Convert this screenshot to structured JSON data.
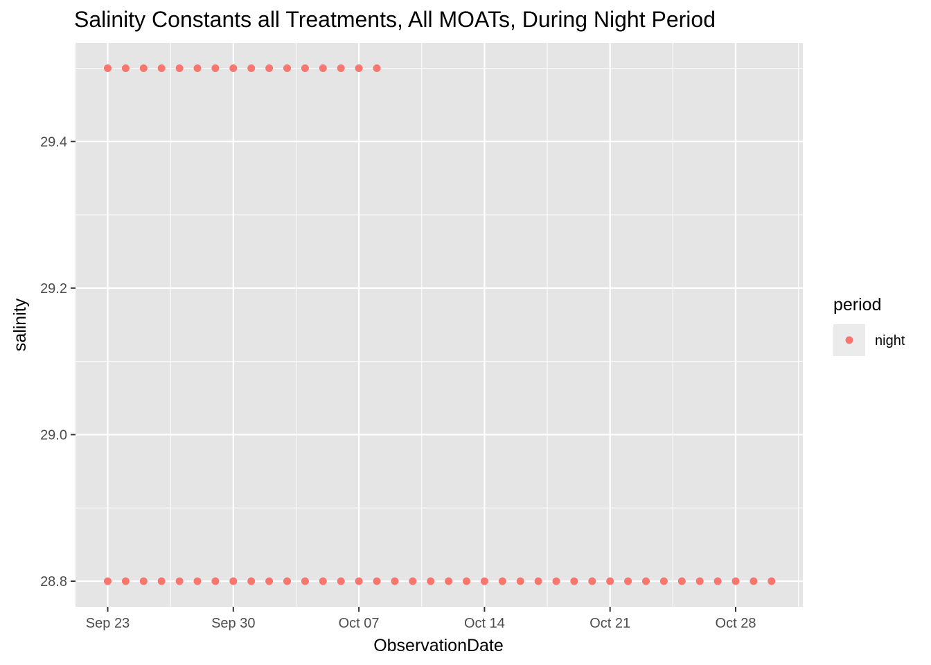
{
  "chart_data": {
    "type": "scatter",
    "title": "Salinity Constants all Treatments, All MOATs, During Night Period",
    "xlabel": "ObservationDate",
    "ylabel": "salinity",
    "x_axis": {
      "type": "date",
      "range": [
        "2020-09-23",
        "2020-10-30"
      ],
      "ticks": [
        {
          "value": "2020-09-23",
          "label": "Sep 23"
        },
        {
          "value": "2020-09-30",
          "label": "Sep 30"
        },
        {
          "value": "2020-10-07",
          "label": "Oct 07"
        },
        {
          "value": "2020-10-14",
          "label": "Oct 14"
        },
        {
          "value": "2020-10-21",
          "label": "Oct 21"
        },
        {
          "value": "2020-10-28",
          "label": "Oct 28"
        }
      ]
    },
    "y_axis": {
      "range": [
        28.8,
        29.5
      ],
      "ticks": [
        {
          "value": 28.8,
          "label": "28.8"
        },
        {
          "value": 29.0,
          "label": "29.0"
        },
        {
          "value": 29.2,
          "label": "29.2"
        },
        {
          "value": 29.4,
          "label": "29.4"
        }
      ]
    },
    "grid": true,
    "legend": {
      "title": "period",
      "placement": "right",
      "entries": [
        {
          "label": "night",
          "color": "#F8766D"
        }
      ]
    },
    "series": [
      {
        "name": "night",
        "color": "#F8766D",
        "points": [
          {
            "x": "2020-09-23",
            "y": 29.5
          },
          {
            "x": "2020-09-24",
            "y": 29.5
          },
          {
            "x": "2020-09-25",
            "y": 29.5
          },
          {
            "x": "2020-09-26",
            "y": 29.5
          },
          {
            "x": "2020-09-27",
            "y": 29.5
          },
          {
            "x": "2020-09-28",
            "y": 29.5
          },
          {
            "x": "2020-09-29",
            "y": 29.5
          },
          {
            "x": "2020-09-30",
            "y": 29.5
          },
          {
            "x": "2020-10-01",
            "y": 29.5
          },
          {
            "x": "2020-10-02",
            "y": 29.5
          },
          {
            "x": "2020-10-03",
            "y": 29.5
          },
          {
            "x": "2020-10-04",
            "y": 29.5
          },
          {
            "x": "2020-10-05",
            "y": 29.5
          },
          {
            "x": "2020-10-06",
            "y": 29.5
          },
          {
            "x": "2020-10-07",
            "y": 29.5
          },
          {
            "x": "2020-10-08",
            "y": 29.5
          },
          {
            "x": "2020-09-23",
            "y": 28.8
          },
          {
            "x": "2020-09-24",
            "y": 28.8
          },
          {
            "x": "2020-09-25",
            "y": 28.8
          },
          {
            "x": "2020-09-26",
            "y": 28.8
          },
          {
            "x": "2020-09-27",
            "y": 28.8
          },
          {
            "x": "2020-09-28",
            "y": 28.8
          },
          {
            "x": "2020-09-29",
            "y": 28.8
          },
          {
            "x": "2020-09-30",
            "y": 28.8
          },
          {
            "x": "2020-10-01",
            "y": 28.8
          },
          {
            "x": "2020-10-02",
            "y": 28.8
          },
          {
            "x": "2020-10-03",
            "y": 28.8
          },
          {
            "x": "2020-10-04",
            "y": 28.8
          },
          {
            "x": "2020-10-05",
            "y": 28.8
          },
          {
            "x": "2020-10-06",
            "y": 28.8
          },
          {
            "x": "2020-10-07",
            "y": 28.8
          },
          {
            "x": "2020-10-08",
            "y": 28.8
          },
          {
            "x": "2020-10-09",
            "y": 28.8
          },
          {
            "x": "2020-10-10",
            "y": 28.8
          },
          {
            "x": "2020-10-11",
            "y": 28.8
          },
          {
            "x": "2020-10-12",
            "y": 28.8
          },
          {
            "x": "2020-10-13",
            "y": 28.8
          },
          {
            "x": "2020-10-14",
            "y": 28.8
          },
          {
            "x": "2020-10-15",
            "y": 28.8
          },
          {
            "x": "2020-10-16",
            "y": 28.8
          },
          {
            "x": "2020-10-17",
            "y": 28.8
          },
          {
            "x": "2020-10-18",
            "y": 28.8
          },
          {
            "x": "2020-10-19",
            "y": 28.8
          },
          {
            "x": "2020-10-20",
            "y": 28.8
          },
          {
            "x": "2020-10-21",
            "y": 28.8
          },
          {
            "x": "2020-10-22",
            "y": 28.8
          },
          {
            "x": "2020-10-23",
            "y": 28.8
          },
          {
            "x": "2020-10-24",
            "y": 28.8
          },
          {
            "x": "2020-10-25",
            "y": 28.8
          },
          {
            "x": "2020-10-26",
            "y": 28.8
          },
          {
            "x": "2020-10-27",
            "y": 28.8
          },
          {
            "x": "2020-10-28",
            "y": 28.8
          },
          {
            "x": "2020-10-29",
            "y": 28.8
          },
          {
            "x": "2020-10-30",
            "y": 28.8
          }
        ]
      }
    ]
  },
  "colors": {
    "panel_background": "#E5E5E5",
    "grid": "#FFFFFF",
    "tick": "#333333",
    "legend_key_background": "#EBEBEB"
  }
}
